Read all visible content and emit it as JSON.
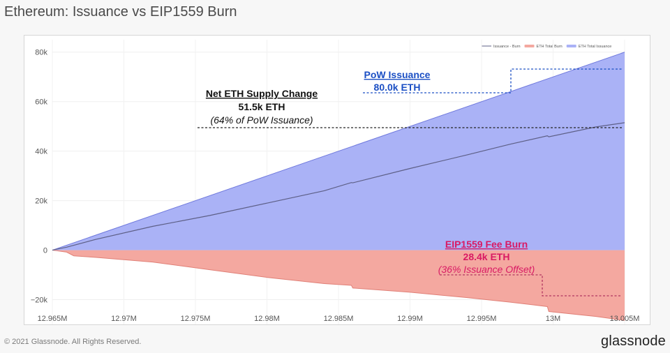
{
  "page": {
    "title": "Ethereum: Issuance vs EIP1559 Burn",
    "copyright": "© 2021 Glassnode. All Rights Reserved.",
    "logo": "glassnode"
  },
  "colors": {
    "issuance_fill": "#aab2f6",
    "issuance_line": "#6e78dc",
    "burn_fill": "#f4a8a0",
    "net_line": "#5d5f86",
    "pow_text": "#1b4fc4",
    "burn_text": "#d91a64",
    "net_text": "#111111"
  },
  "chart_data": {
    "type": "area",
    "x_range": [
      12965000,
      13005000
    ],
    "ylim": [
      -30000,
      85000
    ],
    "x_ticks": [
      {
        "value": 12965000,
        "label": "12.965M"
      },
      {
        "value": 12970000,
        "label": "12.97M"
      },
      {
        "value": 12975000,
        "label": "12.975M"
      },
      {
        "value": 12980000,
        "label": "12.98M"
      },
      {
        "value": 12985000,
        "label": "12.985M"
      },
      {
        "value": 12990000,
        "label": "12.99M"
      },
      {
        "value": 12995000,
        "label": "12.995M"
      },
      {
        "value": 13000000,
        "label": "13M"
      },
      {
        "value": 13005000,
        "label": "13.005M"
      }
    ],
    "y_ticks": [
      {
        "value": 80000,
        "label": "80k"
      },
      {
        "value": 60000,
        "label": "60k"
      },
      {
        "value": 40000,
        "label": "40k"
      },
      {
        "value": 20000,
        "label": "20k"
      },
      {
        "value": 0,
        "label": "0"
      },
      {
        "value": -20000,
        "label": "−20k"
      }
    ],
    "legend": {
      "placement": "top-right",
      "entries": [
        {
          "name": "Issuance - Burn",
          "style": "line",
          "color": "#5d5f86"
        },
        {
          "name": "ETH Total Burn",
          "style": "area",
          "color": "#f4a8a0"
        },
        {
          "name": "ETH Total Issuance",
          "style": "area",
          "color": "#aab2f6"
        }
      ]
    },
    "series": [
      {
        "name": "ETH Total Issuance",
        "x": [
          12965000,
          13005000
        ],
        "y": [
          0,
          80000
        ]
      },
      {
        "name": "ETH Total Burn",
        "x": [
          12965000,
          12966000,
          12966500,
          12968000,
          12972000,
          12976000,
          12980000,
          12984000,
          12985900,
          12986000,
          12990000,
          12994000,
          12997000,
          12999600,
          12999700,
          13003000,
          13005000
        ],
        "y": [
          0,
          -800,
          -2300,
          -2900,
          -4800,
          -7900,
          -11000,
          -13500,
          -14200,
          -15300,
          -17000,
          -19200,
          -21000,
          -22800,
          -24800,
          -26800,
          -28400
        ]
      },
      {
        "name": "Issuance - Burn",
        "x": [
          12965000,
          12966000,
          12968000,
          12972000,
          12976000,
          12980000,
          12984000,
          12985900,
          12986000,
          12990000,
          12994000,
          12997000,
          12999600,
          12999700,
          13003000,
          13005000
        ],
        "y": [
          0,
          1200,
          4300,
          9600,
          14000,
          19000,
          24000,
          27300,
          27200,
          33000,
          38500,
          42800,
          46200,
          45800,
          49800,
          51500
        ]
      }
    ],
    "annotations": {
      "pow": {
        "title": "PoW Issuance",
        "value": "80.0k ETH"
      },
      "net": {
        "title": "Net ETH Supply Change",
        "value": "51.5k ETH",
        "note": "(64% of PoW Issuance)"
      },
      "burn": {
        "title": "EIP1559 Fee Burn",
        "value": "28.4k ETH",
        "note": "(36% Issuance Offset)"
      }
    }
  }
}
